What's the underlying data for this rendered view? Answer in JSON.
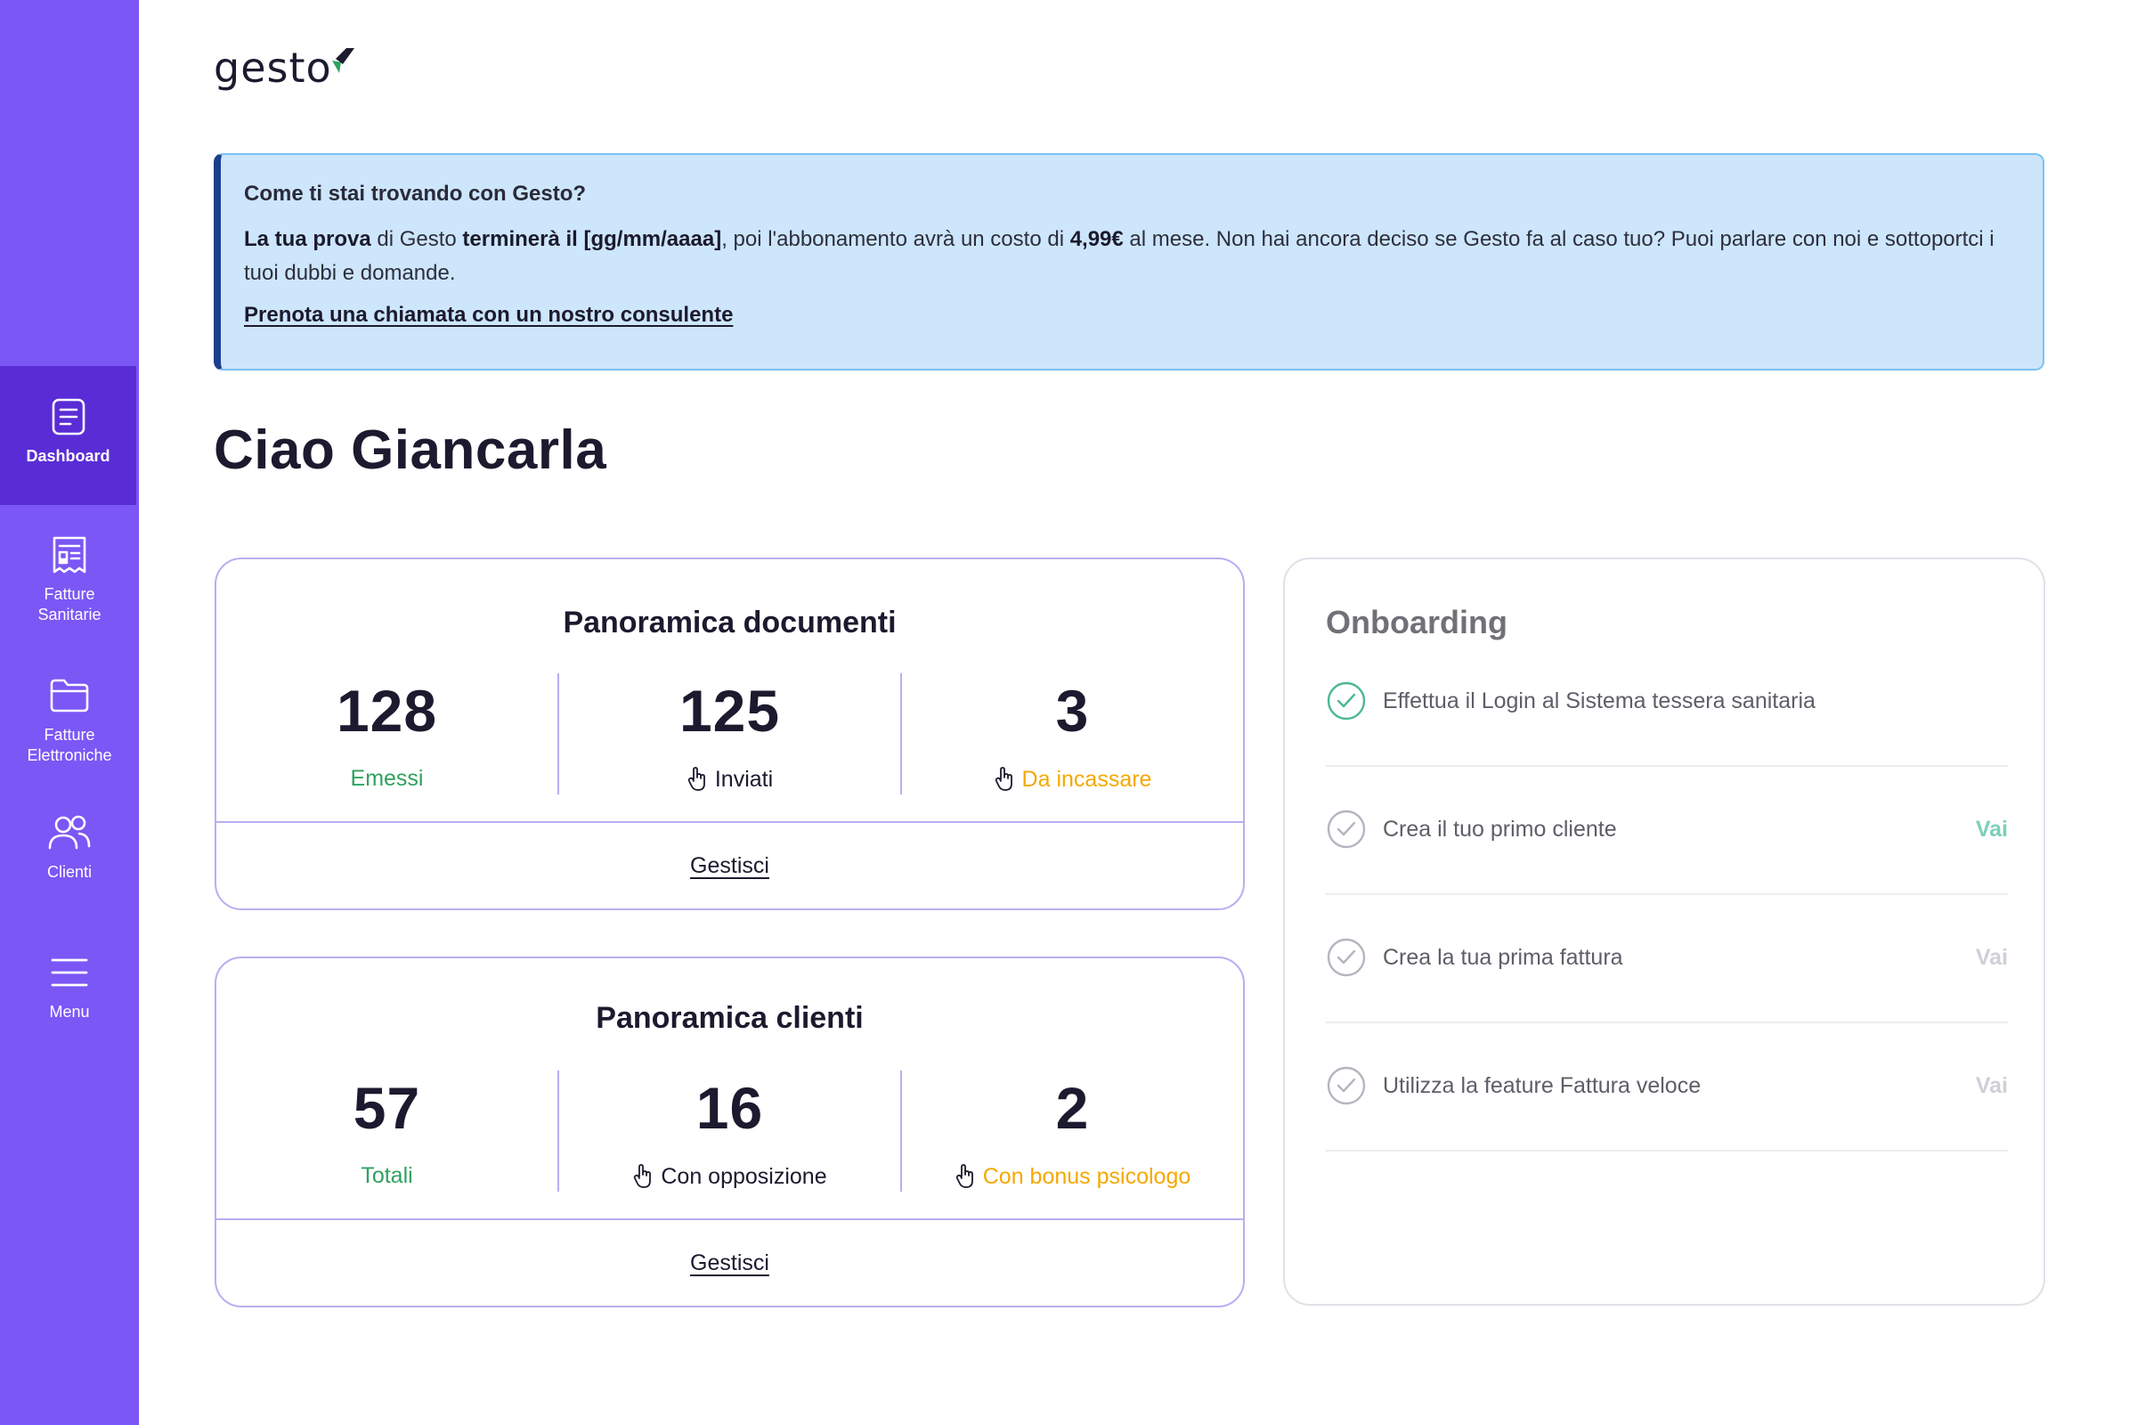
{
  "brand": {
    "name": "gesto",
    "accent_color": "#2ea25f"
  },
  "colors": {
    "sidebar": "#7b57f5",
    "sidebar_active": "#5a2cd6",
    "banner_bg": "#cde6fb",
    "green": "#2ea25f",
    "orange": "#f5a800"
  },
  "sidebar": {
    "items": [
      {
        "label": "Dashboard",
        "icon": "document-icon",
        "active": true
      },
      {
        "label": "Fatture Sanitarie",
        "icon": "invoice-icon",
        "active": false
      },
      {
        "label": "Fatture Elettroniche",
        "icon": "folder-icon",
        "active": false
      },
      {
        "label": "Clienti",
        "icon": "users-icon",
        "active": false
      },
      {
        "label": "Menu",
        "icon": "hamburger-icon",
        "active": false
      }
    ]
  },
  "banner": {
    "title": "Come ti stai trovando con Gesto?",
    "text_part1": "La tua prova",
    "text_part2": " di Gesto ",
    "text_part3": "terminerà il [gg/mm/aaaa]",
    "text_part4": ", poi l'abbonamento avrà un costo di ",
    "text_part5": "4,99€",
    "text_part6": " al mese. Non hai ancora deciso se Gesto fa al caso tuo? Puoi parlare con noi e sottoportci i tuoi dubbi e domande.",
    "link": "Prenota una chiamata con un nostro consulente"
  },
  "greeting": "Ciao Giancarla",
  "documents": {
    "title": "Panoramica documenti",
    "stats": [
      {
        "value": "128",
        "label": "Emessi",
        "icon": ""
      },
      {
        "value": "125",
        "label": "Inviati",
        "icon": "hand-pointer-icon"
      },
      {
        "value": "3",
        "label": "Da incassare",
        "icon": "hand-pointer-icon"
      }
    ],
    "manage": "Gestisci"
  },
  "clients": {
    "title": "Panoramica clienti",
    "stats": [
      {
        "value": "57",
        "label": "Totali",
        "icon": ""
      },
      {
        "value": "16",
        "label": "Con opposizione",
        "icon": "hand-pointer-icon"
      },
      {
        "value": "2",
        "label": "Con bonus psicologo",
        "icon": "hand-pointer-icon"
      }
    ],
    "manage": "Gestisci"
  },
  "onboarding": {
    "title": "Onboarding",
    "steps": [
      {
        "text": "Effettua il Login al Sistema tessera sanitaria",
        "done": true,
        "action": ""
      },
      {
        "text": "Crea il tuo primo cliente",
        "done": false,
        "action": "Vai"
      },
      {
        "text": "Crea la tua prima fattura",
        "done": false,
        "action": "Vai"
      },
      {
        "text": "Utilizza la feature Fattura veloce",
        "done": false,
        "action": "Vai"
      }
    ]
  }
}
